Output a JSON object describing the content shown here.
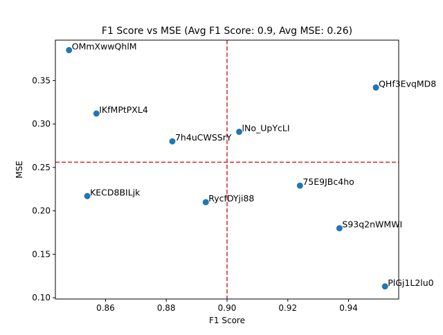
{
  "chart_data": {
    "type": "scatter",
    "title": "F1 Score vs MSE (Avg F1 Score: 0.9, Avg MSE: 0.26)",
    "xlabel": "F1 Score",
    "ylabel": "MSE",
    "xlim": [
      0.8435,
      0.9565
    ],
    "ylim": [
      0.0985,
      0.3965
    ],
    "xticks": [
      0.86,
      0.88,
      0.9,
      0.92,
      0.94
    ],
    "xtick_labels": [
      "0.86",
      "0.88",
      "0.90",
      "0.92",
      "0.94"
    ],
    "yticks": [
      0.1,
      0.15,
      0.2,
      0.25,
      0.3,
      0.35
    ],
    "ytick_labels": [
      "0.10",
      "0.15",
      "0.20",
      "0.25",
      "0.30",
      "0.35"
    ],
    "grid": false,
    "avg_lines": {
      "x": 0.9,
      "y": 0.256,
      "color": "#d62728",
      "style": "dashed"
    },
    "marker_color": "#1f77b4",
    "points": [
      {
        "label": "OMmXwwQhlM",
        "x": 0.848,
        "y": 0.385
      },
      {
        "label": "QHf3EvqMD8",
        "x": 0.949,
        "y": 0.342
      },
      {
        "label": "IKfMPtPXL4",
        "x": 0.857,
        "y": 0.312
      },
      {
        "label": "lNo_UpYcLI",
        "x": 0.904,
        "y": 0.291
      },
      {
        "label": "7h4uCWSSrY",
        "x": 0.882,
        "y": 0.28
      },
      {
        "label": "75E9JBc4ho",
        "x": 0.924,
        "y": 0.229
      },
      {
        "label": "KECD8BILjk",
        "x": 0.854,
        "y": 0.217
      },
      {
        "label": "RycfDYji88",
        "x": 0.893,
        "y": 0.21
      },
      {
        "label": "S93q2nWMWI",
        "x": 0.937,
        "y": 0.18
      },
      {
        "label": "PlGj1L2lu0",
        "x": 0.952,
        "y": 0.113
      }
    ]
  }
}
